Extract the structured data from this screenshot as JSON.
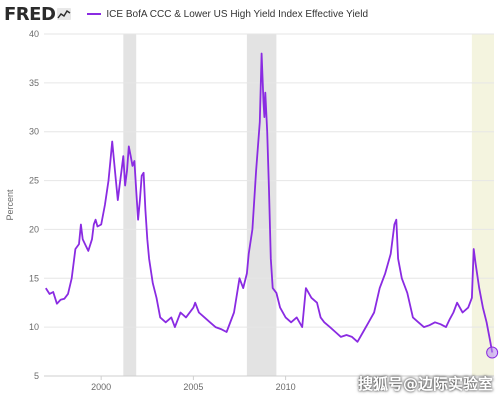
{
  "header": {
    "logo_text": "FRED",
    "logo_icon": "chart-line-icon"
  },
  "watermark": "搜狐号@边际实验室",
  "colors": {
    "series": "#8a2be2",
    "recession": "#e3e3e3",
    "highlight": "#f4f4df",
    "grid": "#e6e6e6",
    "marker": "#b68cf0"
  },
  "chart_data": {
    "type": "line",
    "title": "",
    "xlabel": "",
    "ylabel": "Percent",
    "xlim": [
      1996.9,
      2021.3
    ],
    "ylim": [
      5,
      40
    ],
    "yticks": [
      5,
      10,
      15,
      20,
      25,
      30,
      35,
      40
    ],
    "xticks": [
      2000,
      2005,
      2010
    ],
    "grid": true,
    "legend_position": "top-left",
    "recessions": [
      [
        2001.2,
        2001.9
      ],
      [
        2007.9,
        2009.5
      ]
    ],
    "highlight_band": [
      2020.1,
      2021.3
    ],
    "series": [
      {
        "name": "ICE BofA CCC & Lower US High Yield Index Effective Yield",
        "x": [
          1997.0,
          1997.2,
          1997.4,
          1997.6,
          1997.8,
          1998.0,
          1998.2,
          1998.4,
          1998.6,
          1998.8,
          1998.9,
          1999.0,
          1999.2,
          1999.3,
          1999.5,
          1999.6,
          1999.7,
          1999.8,
          2000.0,
          2000.2,
          2000.4,
          2000.5,
          2000.6,
          2000.8,
          2000.9,
          2001.0,
          2001.1,
          2001.2,
          2001.3,
          2001.4,
          2001.5,
          2001.6,
          2001.7,
          2001.8,
          2001.9,
          2002.0,
          2002.1,
          2002.2,
          2002.3,
          2002.4,
          2002.5,
          2002.6,
          2002.8,
          2003.0,
          2003.2,
          2003.5,
          2003.8,
          2004.0,
          2004.3,
          2004.6,
          2005.0,
          2005.1,
          2005.3,
          2005.6,
          2005.9,
          2006.2,
          2006.5,
          2006.8,
          2007.2,
          2007.5,
          2007.7,
          2007.9,
          2008.0,
          2008.2,
          2008.4,
          2008.6,
          2008.7,
          2008.8,
          2008.85,
          2008.9,
          2009.0,
          2009.1,
          2009.2,
          2009.3,
          2009.5,
          2009.7,
          2010.0,
          2010.3,
          2010.6,
          2010.9,
          2011.1,
          2011.4,
          2011.7,
          2011.9,
          2012.1,
          2012.4,
          2012.7,
          2013.0,
          2013.3,
          2013.6,
          2013.9,
          2014.2,
          2014.5,
          2014.8,
          2015.1,
          2015.4,
          2015.7,
          2015.9,
          2016.0,
          2016.1,
          2016.3,
          2016.6,
          2016.9,
          2017.2,
          2017.5,
          2017.8,
          2018.1,
          2018.4,
          2018.7,
          2018.9,
          2019.1,
          2019.3,
          2019.6,
          2019.9,
          2020.1,
          2020.2,
          2020.3,
          2020.5,
          2020.7,
          2020.9,
          2021.1,
          2021.2
        ],
        "y": [
          14.0,
          13.4,
          13.6,
          12.4,
          12.8,
          12.9,
          13.4,
          15.0,
          18.0,
          18.5,
          20.5,
          19.0,
          18.2,
          17.8,
          19.0,
          20.5,
          21.0,
          20.3,
          20.5,
          22.5,
          25.0,
          27.0,
          29.0,
          25.0,
          23.0,
          24.5,
          26.0,
          27.5,
          24.5,
          26.0,
          28.5,
          27.5,
          26.5,
          27.0,
          24.0,
          21.0,
          23.0,
          25.5,
          25.8,
          22.0,
          19.0,
          17.0,
          14.5,
          13.0,
          11.0,
          10.5,
          11.0,
          10.0,
          11.5,
          11.0,
          12.0,
          12.5,
          11.5,
          11.0,
          10.5,
          10.0,
          9.8,
          9.5,
          11.5,
          15.0,
          14.0,
          15.5,
          17.5,
          20.0,
          26.0,
          31.0,
          38.0,
          33.0,
          31.5,
          34.0,
          30.0,
          24.0,
          17.0,
          14.0,
          13.5,
          12.0,
          11.0,
          10.5,
          11.0,
          10.0,
          14.0,
          13.0,
          12.5,
          11.0,
          10.5,
          10.0,
          9.5,
          9.0,
          9.2,
          9.0,
          8.5,
          9.5,
          10.5,
          11.5,
          14.0,
          15.5,
          17.5,
          20.5,
          21.0,
          17.0,
          15.0,
          13.5,
          11.0,
          10.5,
          10.0,
          10.2,
          10.5,
          10.3,
          10.0,
          10.8,
          11.5,
          12.5,
          11.5,
          12.0,
          13.0,
          18.0,
          16.5,
          14.0,
          12.0,
          10.5,
          8.5,
          7.4
        ]
      }
    ],
    "end_marker": {
      "x": 2021.2,
      "y": 7.4
    }
  }
}
